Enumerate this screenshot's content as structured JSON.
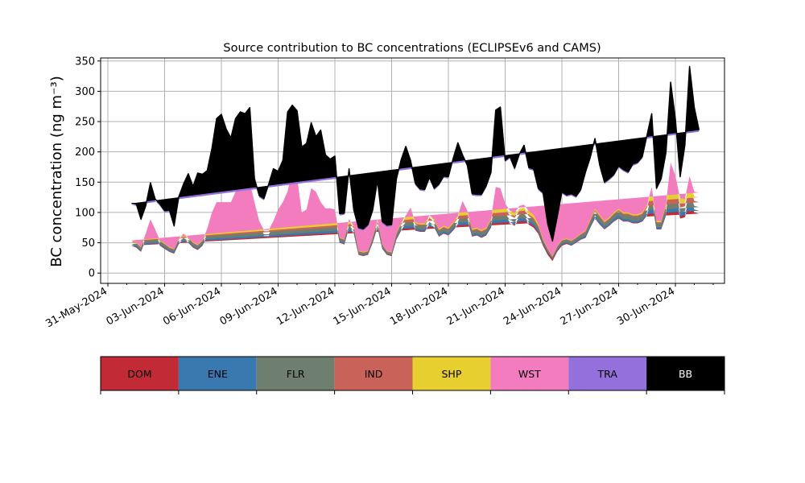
{
  "chart_data": {
    "type": "area",
    "title": "Source contribution to BC concentrations (ECLIPSEv6 and CAMS)",
    "ylabel": "BC concentration (ng m⁻³)",
    "xlabel": "",
    "ylim": [
      -17,
      355
    ],
    "yticks": [
      0,
      50,
      100,
      150,
      200,
      250,
      300,
      350
    ],
    "x_range_days": [
      "2024-05-31T00:00",
      "2024-07-03T12:00"
    ],
    "x_ticks": [
      "31-May-2024",
      "03-Jun-2024",
      "06-Jun-2024",
      "09-Jun-2024",
      "12-Jun-2024",
      "15-Jun-2024",
      "18-Jun-2024",
      "21-Jun-2024",
      "24-Jun-2024",
      "27-Jun-2024",
      "30-Jun-2024"
    ],
    "grid": true,
    "stacked": true,
    "legend_placement": "colorbar-below",
    "legend": [
      {
        "name": "DOM",
        "color": "#c22a35"
      },
      {
        "name": "ENE",
        "color": "#3a78b0"
      },
      {
        "name": "FLR",
        "color": "#6f7f6f"
      },
      {
        "name": "IND",
        "color": "#c9635a"
      },
      {
        "name": "SHP",
        "color": "#e6cf2f"
      },
      {
        "name": "WST",
        "color": "#f37cbf"
      },
      {
        "name": "TRA",
        "color": "#9370db"
      },
      {
        "name": "BB",
        "color": "#000000"
      }
    ],
    "x_dates": [
      "2024-06-01T06:00",
      "2024-06-01T12:00",
      "2024-06-01T18:00",
      "2024-06-02T00:00",
      "2024-06-02T06:00",
      "2024-06-02T12:00",
      "2024-06-02T18:00",
      "2024-06-03T00:00",
      "2024-06-03T06:00",
      "2024-06-03T12:00",
      "2024-06-03T18:00",
      "2024-06-04T00:00",
      "2024-06-04T06:00",
      "2024-06-04T12:00",
      "2024-06-04T18:00",
      "2024-06-05T00:00",
      "2024-06-05T06:00",
      "2024-06-05T12:00",
      "2024-06-05T18:00",
      "2024-06-06T00:00",
      "2024-06-06T06:00",
      "2024-06-06T12:00",
      "2024-06-06T18:00",
      "2024-06-07T00:00",
      "2024-06-07T06:00",
      "2024-06-07T12:00",
      "2024-06-07T18:00",
      "2024-06-08T00:00",
      "2024-06-08T06:00",
      "2024-06-08T12:00",
      "2024-06-08T18:00",
      "2024-06-09T00:00",
      "2024-06-09T06:00",
      "2024-06-09T12:00",
      "2024-06-09T18:00",
      "2024-06-10T00:00",
      "2024-06-10T06:00",
      "2024-06-10T12:00",
      "2024-06-10T18:00",
      "2024-06-11T00:00",
      "2024-06-11T06:00",
      "2024-06-11T12:00",
      "2024-06-11T18:00",
      "2024-06-12T00:00",
      "2024-06-12T06:00",
      "2024-06-12T12:00",
      "2024-06-12T18:00",
      "2024-06-13T00:00",
      "2024-06-13T06:00",
      "2024-06-13T12:00",
      "2024-06-13T18:00",
      "2024-06-14T00:00",
      "2024-06-14T06:00",
      "2024-06-14T12:00",
      "2024-06-14T18:00",
      "2024-06-15T00:00",
      "2024-06-15T06:00",
      "2024-06-15T12:00",
      "2024-06-15T18:00",
      "2024-06-16T00:00",
      "2024-06-16T06:00",
      "2024-06-16T12:00",
      "2024-06-16T18:00",
      "2024-06-17T00:00",
      "2024-06-17T06:00",
      "2024-06-17T12:00",
      "2024-06-17T18:00",
      "2024-06-18T00:00",
      "2024-06-18T06:00",
      "2024-06-18T12:00",
      "2024-06-18T18:00",
      "2024-06-19T00:00",
      "2024-06-19T06:00",
      "2024-06-19T12:00",
      "2024-06-19T18:00",
      "2024-06-20T00:00",
      "2024-06-20T06:00",
      "2024-06-20T12:00",
      "2024-06-20T18:00",
      "2024-06-21T00:00",
      "2024-06-21T06:00",
      "2024-06-21T12:00",
      "2024-06-21T18:00",
      "2024-06-22T00:00",
      "2024-06-22T06:00",
      "2024-06-22T12:00",
      "2024-06-22T18:00",
      "2024-06-23T00:00",
      "2024-06-23T06:00",
      "2024-06-23T12:00",
      "2024-06-23T18:00",
      "2024-06-24T00:00",
      "2024-06-24T06:00",
      "2024-06-24T12:00",
      "2024-06-24T18:00",
      "2024-06-25T00:00",
      "2024-06-25T06:00",
      "2024-06-25T12:00",
      "2024-06-25T18:00",
      "2024-06-26T00:00",
      "2024-06-26T06:00",
      "2024-06-26T12:00",
      "2024-06-26T18:00",
      "2024-06-27T00:00",
      "2024-06-27T06:00",
      "2024-06-27T12:00",
      "2024-06-27T18:00",
      "2024-06-28T00:00",
      "2024-06-28T06:00",
      "2024-06-28T12:00",
      "2024-06-28T18:00",
      "2024-06-29T00:00",
      "2024-06-29T06:00",
      "2024-06-29T12:00",
      "2024-06-29T18:00",
      "2024-06-30T00:00",
      "2024-06-30T06:00",
      "2024-06-30T12:00",
      "2024-06-30T18:00",
      "2024-07-01T00:00",
      "2024-07-01T06:00",
      "2024-07-01T12:00",
      "2024-07-01T18:00"
    ],
    "series": [
      {
        "name": "DOM",
        "values": [
          45,
          42,
          35,
          55,
          75,
          62,
          45,
          40,
          35,
          32,
          48,
          55,
          50,
          42,
          38,
          45,
          60,
          85,
          100,
          100,
          100,
          100,
          115,
          130,
          130,
          128,
          100,
          72,
          60,
          60,
          72,
          90,
          100,
          115,
          145,
          135,
          85,
          90,
          120,
          115,
          100,
          92,
          92,
          90,
          50,
          47,
          75,
          65,
          30,
          28,
          30,
          50,
          75,
          40,
          30,
          28,
          55,
          70,
          80,
          92,
          70,
          68,
          68,
          80,
          75,
          60,
          65,
          62,
          70,
          80,
          100,
          88,
          60,
          62,
          58,
          62,
          75,
          115,
          112,
          92,
          82,
          78,
          90,
          92,
          80,
          75,
          65,
          45,
          30,
          20,
          35,
          45,
          48,
          45,
          50,
          55,
          58,
          75,
          90,
          80,
          72,
          78,
          85,
          90,
          85,
          85,
          82,
          82,
          85,
          95,
          120,
          72,
          72,
          95,
          150,
          130,
          90,
          92,
          120,
          100,
          98
        ]
      },
      {
        "name": "ENE",
        "values": [
          1,
          1,
          1,
          1,
          1,
          1,
          1,
          1,
          1,
          1,
          1,
          1,
          1,
          1,
          1,
          1,
          1,
          1,
          1,
          1,
          1,
          1,
          1,
          1,
          1,
          1,
          1,
          1,
          1,
          1,
          1,
          1,
          1,
          1,
          1,
          1,
          1,
          1,
          1,
          1,
          1,
          1,
          1,
          1,
          1,
          1,
          1,
          1,
          1,
          1,
          1,
          1,
          1,
          1,
          1,
          1,
          1,
          1,
          1,
          1,
          1,
          1,
          1,
          1,
          1,
          1,
          1,
          1,
          1,
          1,
          1,
          1,
          1,
          1,
          1,
          1,
          1,
          2,
          2,
          2,
          2,
          2,
          2,
          2,
          3,
          3,
          3,
          3,
          3,
          3,
          2,
          2,
          1,
          1,
          1,
          1,
          1,
          1,
          1,
          1,
          1,
          1,
          1,
          1,
          1,
          1,
          1,
          1,
          1,
          1,
          1,
          1,
          1,
          1,
          3,
          5,
          4,
          3,
          6,
          5,
          5
        ]
      },
      {
        "name": "FLR",
        "values": [
          2,
          2,
          2,
          2,
          3,
          2,
          2,
          2,
          2,
          2,
          2,
          2,
          2,
          2,
          2,
          2,
          3,
          3,
          4,
          4,
          4,
          4,
          4,
          4,
          5,
          5,
          4,
          3,
          3,
          3,
          3,
          3,
          4,
          4,
          5,
          5,
          3,
          3,
          4,
          4,
          4,
          3,
          3,
          3,
          2,
          2,
          3,
          3,
          1,
          1,
          1,
          2,
          3,
          2,
          1,
          1,
          2,
          3,
          3,
          3,
          3,
          3,
          3,
          3,
          3,
          3,
          3,
          3,
          3,
          3,
          4,
          3,
          3,
          3,
          3,
          3,
          3,
          5,
          5,
          4,
          4,
          4,
          4,
          4,
          4,
          4,
          3,
          2,
          2,
          1,
          2,
          2,
          2,
          2,
          2,
          2,
          3,
          3,
          4,
          4,
          3,
          3,
          3,
          4,
          3,
          3,
          3,
          3,
          3,
          4,
          5,
          3,
          3,
          4,
          6,
          6,
          6,
          7,
          6,
          6,
          6
        ]
      },
      {
        "name": "IND",
        "values": [
          4,
          4,
          3,
          5,
          6,
          5,
          4,
          4,
          3,
          3,
          4,
          5,
          4,
          4,
          4,
          4,
          5,
          7,
          8,
          8,
          8,
          8,
          9,
          10,
          10,
          10,
          8,
          6,
          5,
          5,
          6,
          7,
          8,
          9,
          12,
          11,
          7,
          7,
          10,
          9,
          8,
          7,
          7,
          7,
          4,
          4,
          6,
          5,
          3,
          3,
          3,
          4,
          6,
          3,
          3,
          3,
          5,
          6,
          7,
          8,
          6,
          6,
          6,
          7,
          6,
          5,
          5,
          5,
          6,
          7,
          8,
          7,
          5,
          5,
          5,
          5,
          6,
          10,
          10,
          8,
          7,
          7,
          7,
          7,
          7,
          6,
          5,
          4,
          3,
          2,
          3,
          4,
          4,
          4,
          4,
          5,
          5,
          6,
          7,
          7,
          6,
          6,
          7,
          7,
          7,
          7,
          7,
          7,
          7,
          8,
          10,
          6,
          6,
          8,
          12,
          10,
          8,
          8,
          10,
          8,
          8
        ]
      },
      {
        "name": "SHP",
        "values": [
          1,
          1,
          1,
          1,
          2,
          1,
          1,
          1,
          1,
          1,
          1,
          1,
          1,
          1,
          1,
          1,
          2,
          2,
          2,
          2,
          2,
          2,
          3,
          3,
          3,
          3,
          2,
          2,
          1,
          1,
          2,
          2,
          2,
          3,
          3,
          3,
          2,
          2,
          3,
          3,
          2,
          2,
          2,
          2,
          1,
          1,
          2,
          2,
          1,
          1,
          1,
          1,
          2,
          1,
          1,
          1,
          1,
          2,
          2,
          2,
          2,
          2,
          2,
          2,
          2,
          2,
          2,
          2,
          2,
          2,
          3,
          2,
          2,
          2,
          2,
          2,
          2,
          4,
          4,
          3,
          3,
          3,
          3,
          3,
          3,
          3,
          2,
          1,
          1,
          1,
          1,
          1,
          1,
          1,
          1,
          1,
          2,
          2,
          2,
          2,
          2,
          2,
          2,
          2,
          2,
          2,
          2,
          2,
          2,
          3,
          3,
          2,
          2,
          3,
          5,
          4,
          7,
          6,
          8,
          7,
          8
        ]
      },
      {
        "name": "WST",
        "values": [
          1,
          1,
          1,
          1,
          2,
          1,
          1,
          1,
          1,
          1,
          1,
          1,
          1,
          1,
          1,
          1,
          2,
          2,
          2,
          2,
          2,
          2,
          2,
          3,
          3,
          3,
          2,
          2,
          1,
          1,
          2,
          2,
          2,
          3,
          3,
          3,
          2,
          2,
          2,
          2,
          2,
          2,
          2,
          2,
          1,
          1,
          2,
          2,
          1,
          1,
          1,
          1,
          2,
          1,
          1,
          1,
          1,
          2,
          2,
          2,
          2,
          2,
          2,
          2,
          2,
          2,
          2,
          2,
          2,
          2,
          3,
          2,
          2,
          2,
          2,
          2,
          2,
          6,
          7,
          6,
          5,
          5,
          5,
          5,
          5,
          5,
          3,
          2,
          1,
          1,
          1,
          1,
          1,
          1,
          1,
          1,
          1,
          2,
          2,
          2,
          2,
          2,
          2,
          2,
          2,
          2,
          2,
          2,
          2,
          2,
          3,
          2,
          2,
          3,
          6,
          6,
          8,
          6,
          10,
          8,
          8
        ]
      },
      {
        "name": "TRA",
        "values": [
          58,
          60,
          43,
          43,
          57,
          47,
          57,
          51,
          58,
          35,
          66,
          79,
          102,
          89,
          115,
          106,
          93,
          103,
          135,
          142,
          118,
          103,
          118,
          112,
          108,
          120,
          36,
          39,
          49,
          73,
          83,
          60,
          66,
          128,
          105,
          107,
          105,
          106,
          105,
          88,
          116,
          85,
          78,
          85,
          36,
          40,
          80,
          23,
          35,
          35,
          40,
          42,
          61,
          34,
          39,
          42,
          87,
          100,
          111,
          75,
          61,
          54,
          53,
          60,
          48,
          71,
          79,
          81,
          102,
          117,
          73,
          72,
          55,
          52,
          56,
          66,
          74,
          124,
          131,
          68,
          86,
          71,
          82,
          95,
          69,
          73,
          56,
          73,
          38,
          22,
          45,
          76,
          69,
          74,
          65,
          70,
          94,
          99,
          113,
          79,
          61,
          61,
          60,
          68,
          68,
          64,
          80,
          83,
          89,
          112,
          118,
          51,
          67,
          82,
          130,
          90,
          33,
          86,
          178,
          136,
          100
        ]
      },
      {
        "name": "BB",
        "values": [
          3,
          3,
          3,
          3,
          3,
          3,
          3,
          3,
          3,
          3,
          3,
          3,
          3,
          3,
          3,
          3,
          3,
          3,
          3,
          3,
          3,
          3,
          3,
          3,
          3,
          3,
          3,
          3,
          3,
          3,
          3,
          3,
          3,
          3,
          3,
          3,
          3,
          3,
          3,
          3,
          3,
          3,
          3,
          3,
          3,
          3,
          3,
          3,
          3,
          3,
          3,
          3,
          3,
          3,
          3,
          3,
          3,
          3,
          3,
          3,
          3,
          3,
          3,
          3,
          3,
          3,
          3,
          3,
          3,
          3,
          3,
          3,
          3,
          3,
          3,
          3,
          3,
          3,
          3,
          3,
          3,
          3,
          3,
          3,
          3,
          3,
          3,
          3,
          3,
          3,
          3,
          3,
          3,
          3,
          3,
          3,
          3,
          3,
          3,
          3,
          3,
          3,
          3,
          3,
          3,
          3,
          3,
          3,
          3,
          3,
          3,
          3,
          3,
          3,
          3,
          3,
          3,
          3,
          3,
          3,
          3
        ]
      }
    ]
  }
}
